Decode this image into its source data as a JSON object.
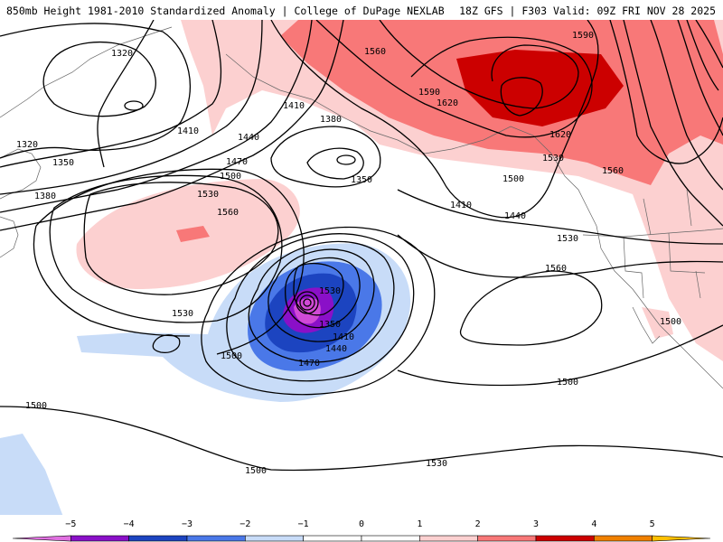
{
  "header": {
    "title_left": "850mb Height 1981-2010 Standardized Anomaly | College of DuPage NEXLAB",
    "title_right": "18Z GFS | F303 Valid: 09Z FRI NOV 28 2025"
  },
  "map": {
    "contour_labels": [
      "1320",
      "1320",
      "1350",
      "1380",
      "1410",
      "1410",
      "1380",
      "1350",
      "1440",
      "1470",
      "1500",
      "1530",
      "1560",
      "1530",
      "1500",
      "1410",
      "1440",
      "1500",
      "1530",
      "1560",
      "1350",
      "1410",
      "1440",
      "1470",
      "1530",
      "1560",
      "1590",
      "1590",
      "1620",
      "1620",
      "1530",
      "1560",
      "1500",
      "1500",
      "1500",
      "1500",
      "1530"
    ],
    "colors": {
      "neg5": "#d04ad6",
      "neg4": "#8a10c8",
      "neg3": "#1c44c0",
      "neg2": "#4a78e8",
      "neg1": "#c8dcf8",
      "pos1": "#fcd0d0",
      "pos2": "#f87878",
      "pos3": "#cc0000",
      "pos4": "#f08000",
      "pos5": "#ffc000"
    }
  },
  "colorbar": {
    "ticks": [
      "−5",
      "−4",
      "−3",
      "−2",
      "−1",
      "0",
      "1",
      "2",
      "3",
      "4",
      "5"
    ],
    "segments": [
      "#e070e0",
      "#8a10c8",
      "#1c44c0",
      "#4a78e8",
      "#c8dcf8",
      "#ffffff",
      "#ffffff",
      "#fcd0d0",
      "#f87878",
      "#cc0000",
      "#f08000",
      "#ffc000"
    ]
  }
}
